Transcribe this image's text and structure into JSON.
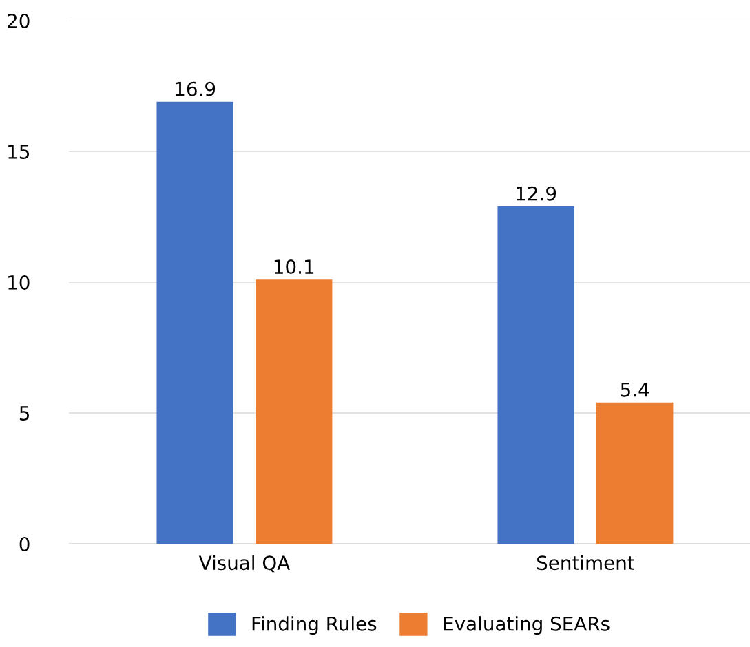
{
  "chart_data": {
    "type": "bar",
    "categories": [
      "Visual QA",
      "Sentiment"
    ],
    "series": [
      {
        "name": "Finding Rules",
        "color": "#4472c4",
        "values": [
          16.9,
          12.9
        ]
      },
      {
        "name": "Evaluating SEARs",
        "color": "#ed7d31",
        "values": [
          10.1,
          5.4
        ]
      }
    ],
    "ylim": [
      0,
      20
    ],
    "yticks": [
      0,
      5,
      10,
      15,
      20
    ],
    "grid": "y",
    "legend": "bottom",
    "data_labels": true
  }
}
